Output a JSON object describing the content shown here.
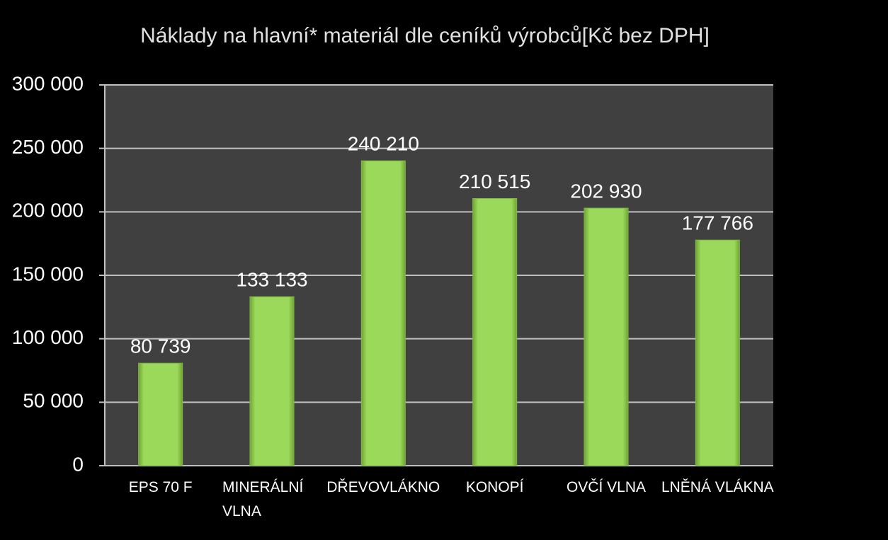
{
  "chart_data": {
    "type": "bar",
    "title": "Náklady na hlavní* materiál  dle ceníků výrobců[Kč bez DPH]",
    "categories": [
      "EPS 70 F",
      "MINERÁLNÍ VLNA",
      "DŘEVOVLÁKNO",
      "KONOPÍ",
      "OVČÍ VLNA",
      "LNĚNÁ VLÁKNA"
    ],
    "values": [
      80739,
      133133,
      240210,
      210515,
      202930,
      177766
    ],
    "value_labels": [
      "80 739",
      "133 133",
      "240 210",
      "210 515",
      "202 930",
      "177 766"
    ],
    "color": "#92d050",
    "ylim": [
      0,
      300000
    ],
    "yticks": [
      0,
      {
        "value": 50000,
        "label": "50 000"
      },
      {
        "value": 100000,
        "label": "100 000"
      },
      {
        "value": 150000,
        "label": "150 000"
      },
      {
        "value": 200000,
        "label": "200 000"
      },
      {
        "value": 250000,
        "label": "250 000"
      },
      {
        "value": 300000,
        "label": "300 000"
      }
    ],
    "grid": true
  }
}
